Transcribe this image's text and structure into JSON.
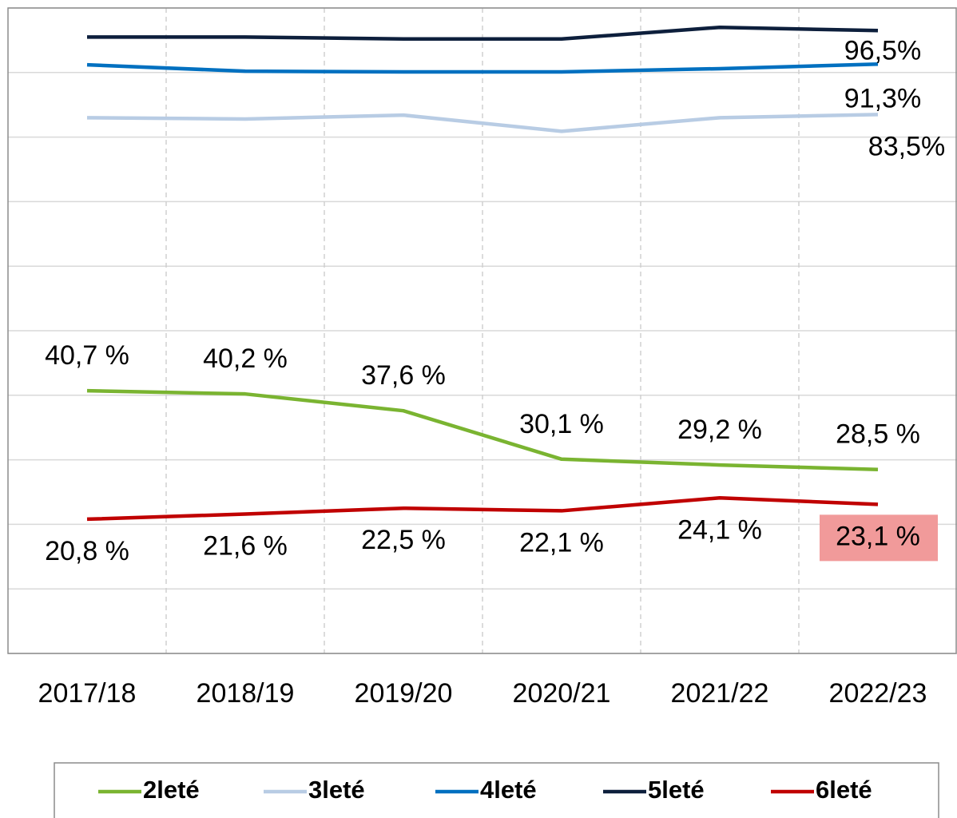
{
  "chart_data": {
    "type": "line",
    "categories": [
      "2017/18",
      "2018/19",
      "2019/20",
      "2020/21",
      "2021/22",
      "2022/23"
    ],
    "ylim": [
      0,
      100
    ],
    "yticks": [
      0,
      10,
      20,
      30,
      40,
      50,
      60,
      70,
      80,
      90,
      100
    ],
    "grid": true,
    "series": [
      {
        "name": "2leté",
        "color": "#7ab431",
        "values": [
          40.7,
          40.2,
          37.6,
          30.1,
          29.2,
          28.5
        ],
        "value_labels": [
          "40,7 %",
          "40,2 %",
          "37,6 %",
          "30,1 %",
          "29,2 %",
          "28,5 %"
        ]
      },
      {
        "name": "3leté",
        "color": "#b8cce4",
        "values": [
          83.0,
          82.8,
          83.4,
          80.9,
          83.0,
          83.5
        ],
        "value_labels": [
          null,
          null,
          null,
          null,
          null,
          "83,5%"
        ]
      },
      {
        "name": "4leté",
        "color": "#0070c0",
        "values": [
          91.2,
          90.2,
          90.1,
          90.1,
          90.6,
          91.3
        ],
        "value_labels": [
          null,
          null,
          null,
          null,
          null,
          "91,3%"
        ]
      },
      {
        "name": "5leté",
        "color": "#0d1f3c",
        "values": [
          95.5,
          95.5,
          95.2,
          95.2,
          97.0,
          96.5
        ],
        "value_labels": [
          null,
          null,
          null,
          null,
          null,
          "96,5%"
        ]
      },
      {
        "name": "6leté",
        "color": "#c00000",
        "values": [
          20.8,
          21.6,
          22.5,
          22.1,
          24.1,
          23.1
        ],
        "value_labels": [
          "20,8 %",
          "21,6 %",
          "22,5 %",
          "22,1 %",
          "24,1 %",
          "23,1 %"
        ],
        "highlight_index": 5,
        "highlight_color": "#f19a9a"
      }
    ],
    "legend": "bottom"
  }
}
